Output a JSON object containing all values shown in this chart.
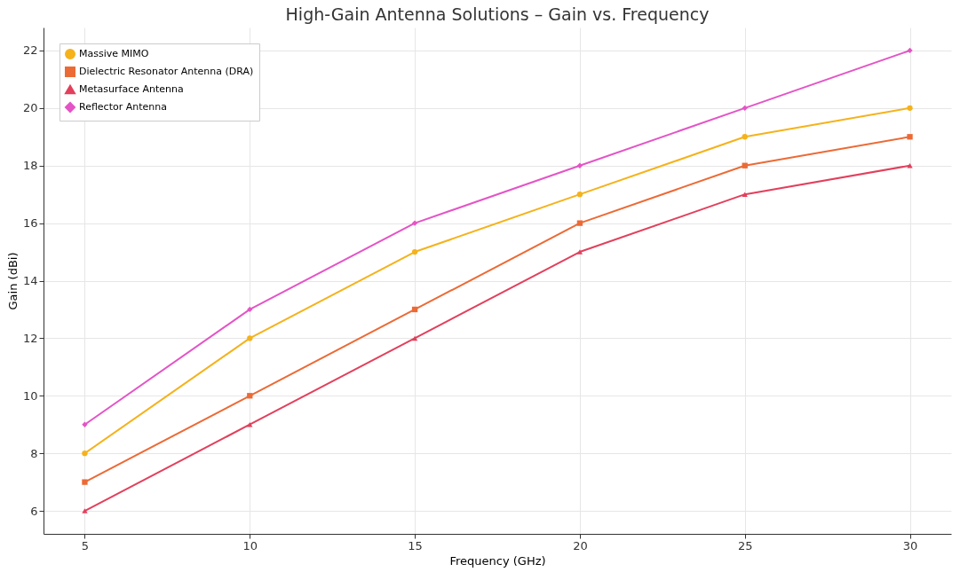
{
  "chart_data": {
    "type": "line",
    "title": "High-Gain Antenna Solutions – Gain vs. Frequency",
    "xlabel": "Frequency (GHz)",
    "ylabel": "Gain (dBi)",
    "x": [
      5,
      10,
      15,
      20,
      25,
      30
    ],
    "series": [
      {
        "name": "Massive MIMO",
        "color": "#f5b21b",
        "marker": "circle",
        "values": [
          8,
          12,
          15,
          17,
          19,
          20
        ]
      },
      {
        "name": "Dielectric Resonator Antenna (DRA)",
        "color": "#ec6a35",
        "marker": "square",
        "values": [
          7,
          10,
          13,
          16,
          18,
          19
        ]
      },
      {
        "name": "Metasurface Antenna",
        "color": "#e2405c",
        "marker": "triangle",
        "values": [
          6,
          9,
          12,
          15,
          17,
          18
        ]
      },
      {
        "name": "Reflector Antenna",
        "color": "#e454c6",
        "marker": "diamond",
        "values": [
          9,
          13,
          16,
          18,
          20,
          22
        ]
      }
    ],
    "xlim": [
      3.75,
      31.25
    ],
    "ylim": [
      5.2,
      22.8
    ],
    "xticks": [
      5,
      10,
      15,
      20,
      25,
      30
    ],
    "yticks": [
      6,
      8,
      10,
      12,
      14,
      16,
      18,
      20,
      22
    ],
    "grid": true,
    "legend": "top left",
    "line_style": "solid"
  }
}
